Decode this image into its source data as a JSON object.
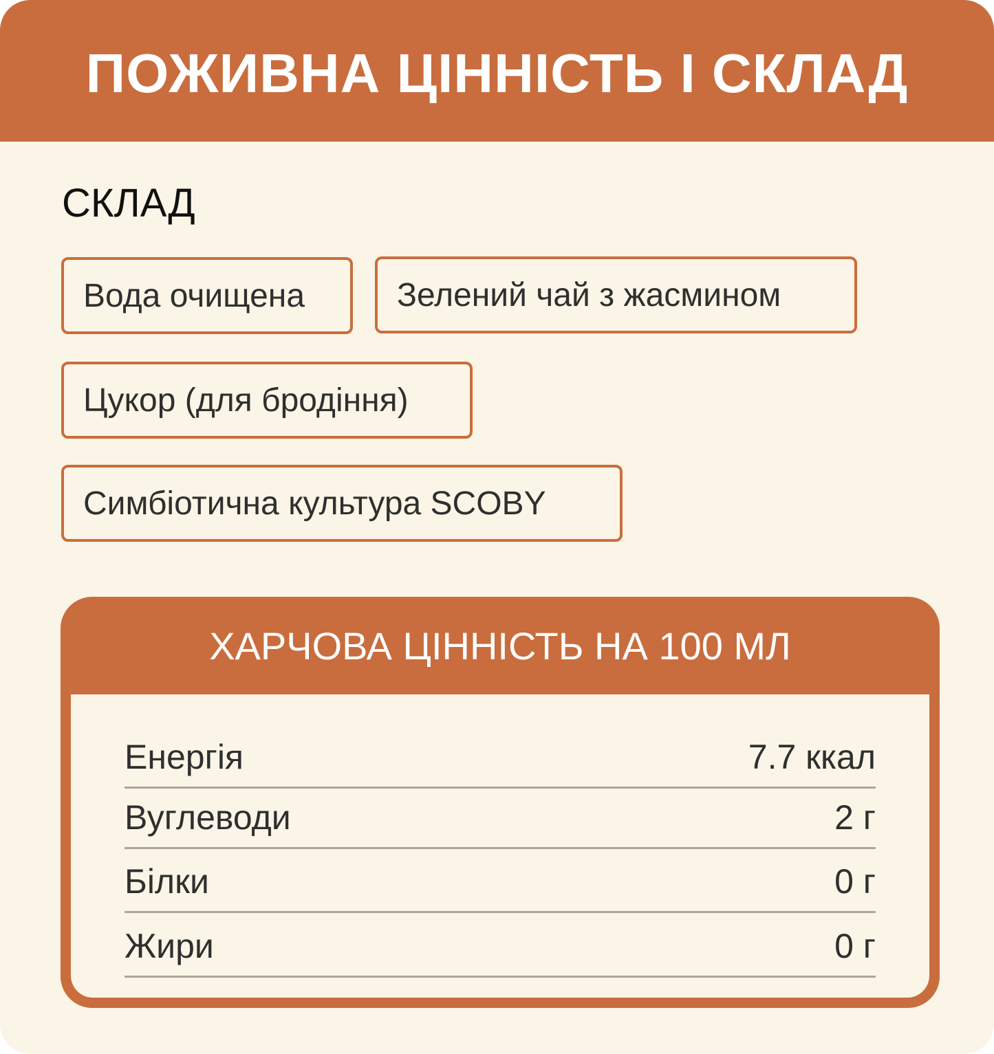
{
  "header": {
    "title": "ПОЖИВНА ЦІННІСТЬ І СКЛАД"
  },
  "composition": {
    "title": "СКЛАД",
    "ingredients": [
      "Вода очищена",
      "Зелений чай з жасмином",
      "Цукор (для бродіння)",
      "Симбіотична культура SCOBY"
    ]
  },
  "nutrition": {
    "title": "ХАРЧОВА ЦІННІСТЬ НА 100 МЛ",
    "rows": [
      {
        "label": "Енергія",
        "value": "7.7 ккал"
      },
      {
        "label": "Вуглеводи",
        "value": "2 г"
      },
      {
        "label": "Білки",
        "value": "0 г"
      },
      {
        "label": "Жири",
        "value": "0 г"
      }
    ]
  },
  "colors": {
    "accent": "#C96D3E",
    "background": "#FAF5E6",
    "text": "#2f2f2f"
  }
}
